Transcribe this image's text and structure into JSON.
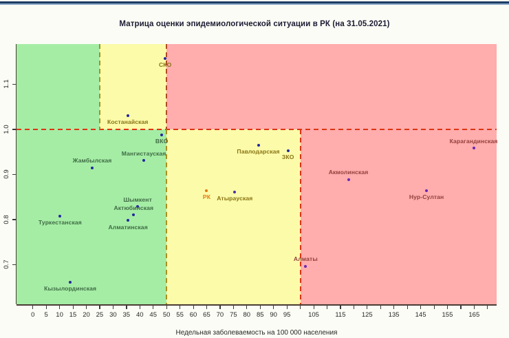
{
  "header": {
    "top_bar": {
      "navy": "#1c3c64",
      "light_blue": "#8aa9c6"
    },
    "title_color": "#1b1b33"
  },
  "chart_data": {
    "type": "scatter",
    "title": "Матрица оценки эпидемиологической ситуации в РК (на 31.05.2021)",
    "xlabel": "Недельная заболеваемость на 100 000 населения",
    "ylabel": "",
    "xlim": [
      -6.1,
      173.4
    ],
    "ylim": [
      0.612,
      1.189
    ],
    "grid": false,
    "legend": "none",
    "zone_colors": {
      "green": "#a5eda5",
      "yellow": "#fbfba9",
      "pink": "#ffadad"
    },
    "zones": [
      {
        "name": "green-upper",
        "x0": -6.1,
        "x1": 25,
        "y0": 1.0,
        "y1": 1.189,
        "color": "green"
      },
      {
        "name": "yellow-upper",
        "x0": 25,
        "x1": 50,
        "y0": 1.0,
        "y1": 1.189,
        "color": "yellow"
      },
      {
        "name": "pink-upper",
        "x0": 50,
        "x1": 173.4,
        "y0": 1.0,
        "y1": 1.189,
        "color": "pink"
      },
      {
        "name": "green-lower",
        "x0": -6.1,
        "x1": 50,
        "y0": 0.612,
        "y1": 1.0,
        "color": "green"
      },
      {
        "name": "yellow-lower",
        "x0": 50,
        "x1": 100,
        "y0": 0.612,
        "y1": 1.0,
        "color": "yellow"
      },
      {
        "name": "pink-lower",
        "x0": 100,
        "x1": 173.4,
        "y0": 0.612,
        "y1": 1.0,
        "color": "pink"
      }
    ],
    "guide_lines": [
      {
        "orient": "h",
        "at": 1.0,
        "from": -6.1,
        "to": 173.4,
        "color": "#df3414"
      },
      {
        "orient": "v",
        "at": 25,
        "from": 1.0,
        "to": 1.189,
        "color": "#a9901e"
      },
      {
        "orient": "v",
        "at": 50,
        "from": 1.0,
        "to": 1.189,
        "color": "#b04a26"
      },
      {
        "orient": "v",
        "at": 50,
        "from": 0.612,
        "to": 1.0,
        "color": "#a9901e"
      },
      {
        "orient": "v",
        "at": 100,
        "from": 0.612,
        "to": 1.0,
        "color": "#df3414"
      }
    ],
    "x_ticks": [
      {
        "v": 0,
        "label": "0"
      },
      {
        "v": 5,
        "label": "5"
      },
      {
        "v": 10,
        "label": "10"
      },
      {
        "v": 15,
        "label": "15"
      },
      {
        "v": 20,
        "label": "20"
      },
      {
        "v": 25,
        "label": "25"
      },
      {
        "v": 30,
        "label": "30"
      },
      {
        "v": 35,
        "label": "35"
      },
      {
        "v": 40,
        "label": "40"
      },
      {
        "v": 45,
        "label": "45"
      },
      {
        "v": 50,
        "label": "50"
      },
      {
        "v": 55,
        "label": "55"
      },
      {
        "v": 60,
        "label": "60"
      },
      {
        "v": 65,
        "label": "65"
      },
      {
        "v": 70,
        "label": "70"
      },
      {
        "v": 75,
        "label": "75"
      },
      {
        "v": 80,
        "label": "80"
      },
      {
        "v": 85,
        "label": "85"
      },
      {
        "v": 90,
        "label": "90"
      },
      {
        "v": 95,
        "label": "95"
      },
      {
        "v": 100,
        "label": ""
      },
      {
        "v": 105,
        "label": "105"
      },
      {
        "v": 110,
        "label": ""
      },
      {
        "v": 115,
        "label": "115"
      },
      {
        "v": 120,
        "label": ""
      },
      {
        "v": 125,
        "label": "125"
      },
      {
        "v": 130,
        "label": ""
      },
      {
        "v": 135,
        "label": "135"
      },
      {
        "v": 140,
        "label": ""
      },
      {
        "v": 145,
        "label": "145"
      },
      {
        "v": 150,
        "label": ""
      },
      {
        "v": 155,
        "label": "155"
      },
      {
        "v": 160,
        "label": ""
      },
      {
        "v": 165,
        "label": "165"
      },
      {
        "v": 170,
        "label": ""
      }
    ],
    "y_ticks": [
      {
        "v": 0.7,
        "label": "0.7"
      },
      {
        "v": 0.8,
        "label": "0.8"
      },
      {
        "v": 0.9,
        "label": "0.9"
      },
      {
        "v": 1.0,
        "label": "1.0"
      },
      {
        "v": 1.1,
        "label": "1.1"
      }
    ],
    "label_colors": {
      "green": "#3f6b44",
      "olive": "#8a7414",
      "red": "#94403c",
      "orange": "#e07912"
    },
    "points": [
      {
        "name": "СКО",
        "x": 49.5,
        "y": 1.157,
        "dot": "#26269c",
        "zone": "olive",
        "label_pos": "below"
      },
      {
        "name": "Костанайская",
        "x": 35.5,
        "y": 1.031,
        "dot": "#26269c",
        "zone": "olive",
        "label_pos": "below"
      },
      {
        "name": "ВКО",
        "x": 48.2,
        "y": 0.988,
        "dot": "#26269c",
        "zone": "green",
        "label_pos": "below"
      },
      {
        "name": "Павлодарская",
        "x": 84.3,
        "y": 0.965,
        "dot": "#26269c",
        "zone": "olive",
        "label_pos": "below"
      },
      {
        "name": "Карагандинская",
        "x": 164.8,
        "y": 0.958,
        "dot": "#6929b4",
        "zone": "red",
        "label_pos": "above"
      },
      {
        "name": "ЗКО",
        "x": 95.4,
        "y": 0.953,
        "dot": "#26269c",
        "zone": "olive",
        "label_pos": "below"
      },
      {
        "name": "Мангистауская",
        "x": 41.5,
        "y": 0.931,
        "dot": "#26269c",
        "zone": "green",
        "label_pos": "above"
      },
      {
        "name": "Жамбылская",
        "x": 22.2,
        "y": 0.915,
        "dot": "#26269c",
        "zone": "green",
        "label_pos": "above"
      },
      {
        "name": "Акмолинская",
        "x": 118,
        "y": 0.889,
        "dot": "#6929b4",
        "zone": "red",
        "label_pos": "above"
      },
      {
        "name": "РК",
        "x": 65,
        "y": 0.864,
        "dot": "#e07912",
        "zone": "orange",
        "label_pos": "below"
      },
      {
        "name": "Нур-Султан",
        "x": 147.2,
        "y": 0.864,
        "dot": "#6929b4",
        "zone": "red",
        "label_pos": "below"
      },
      {
        "name": "Атырауская",
        "x": 75.5,
        "y": 0.861,
        "dot": "#4b2fa6",
        "zone": "olive",
        "label_pos": "below"
      },
      {
        "name": "Шымкент",
        "x": 39.2,
        "y": 0.828,
        "dot": "#26269c",
        "zone": "green",
        "label_pos": "above"
      },
      {
        "name": "Актюбинская",
        "x": 37.7,
        "y": 0.81,
        "dot": "#26269c",
        "zone": "green",
        "label_pos": "above"
      },
      {
        "name": "Туркестанская",
        "x": 10.2,
        "y": 0.808,
        "dot": "#26269c",
        "zone": "green",
        "label_pos": "below"
      },
      {
        "name": "Алматинская",
        "x": 35.6,
        "y": 0.798,
        "dot": "#26269c",
        "zone": "green",
        "label_pos": "below"
      },
      {
        "name": "Алматы",
        "x": 102,
        "y": 0.696,
        "dot": "#6929b4",
        "zone": "red",
        "label_pos": "above"
      },
      {
        "name": "Кызылординская",
        "x": 14,
        "y": 0.661,
        "dot": "#26269c",
        "zone": "green",
        "label_pos": "below"
      }
    ]
  }
}
